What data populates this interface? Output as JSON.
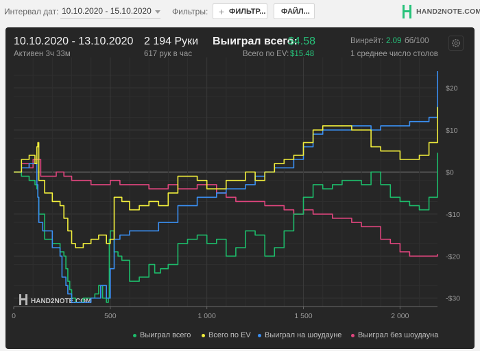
{
  "toolbar": {
    "interval_label": "Интервал дат:",
    "date_range_value": "10.10.2020 - 15.10.2020",
    "filters_label": "Фильтры:",
    "filter_button": "ФИЛЬТР...",
    "file_button": "ФАЙЛ...",
    "logo_text": "HAND2NOTE.COM"
  },
  "summary": {
    "date_range": "10.10.2020 - 13.10.2020",
    "active_time": "Активен 3ч 33м",
    "hands": "2 194 Руки",
    "hands_per_hour": "617 рук в час",
    "won_total_label": "Выиграл всего:",
    "won_total_value": "$4.58",
    "ev_total_label": "Всего по EV:",
    "ev_total_value": "$15.48",
    "winrate_label": "Винрейт:",
    "winrate_value": "2.09",
    "winrate_unit": "бб/100",
    "tables_avg": "1 среднее число столов"
  },
  "watermark_text": "HAND2NOTE.COM",
  "colors": {
    "won_total": "#1dbb6a",
    "ev_total": "#f2ef3c",
    "showdown": "#3a8ff2",
    "no_showdown": "#e0457e",
    "accent_green": "#27c27a"
  },
  "chart_data": {
    "type": "line",
    "xlabel": "",
    "ylabel": "",
    "xlim": [
      0,
      2194
    ],
    "ylim": [
      -32,
      24
    ],
    "x_ticks": [
      0,
      500,
      1000,
      1500,
      2000
    ],
    "x_tick_labels": [
      "0",
      "500",
      "1 000",
      "1 500",
      "2 000"
    ],
    "y_ticks": [
      20,
      10,
      0,
      -10,
      -20,
      -30
    ],
    "y_tick_labels": [
      "$20",
      "$10",
      "$0",
      "-$10",
      "-$20",
      "-$30"
    ],
    "grid": true,
    "legend_position": "bottom-right",
    "series": [
      {
        "name": "Выиграл всего",
        "color_key": "won_total",
        "points": [
          [
            0,
            0
          ],
          [
            40,
            -1
          ],
          [
            80,
            -2
          ],
          [
            110,
            -3
          ],
          [
            120,
            -4
          ],
          [
            125,
            -6
          ],
          [
            130,
            -10
          ],
          [
            160,
            -16
          ],
          [
            200,
            -17
          ],
          [
            240,
            -19
          ],
          [
            260,
            -20
          ],
          [
            270,
            -23
          ],
          [
            280,
            -26
          ],
          [
            290,
            -28
          ],
          [
            300,
            -30
          ],
          [
            320,
            -31
          ],
          [
            360,
            -30
          ],
          [
            400,
            -30
          ],
          [
            420,
            -29
          ],
          [
            440,
            -27
          ],
          [
            460,
            -30
          ],
          [
            480,
            -31
          ],
          [
            490,
            -30
          ],
          [
            495,
            -16
          ],
          [
            500,
            -14
          ],
          [
            520,
            -19
          ],
          [
            540,
            -20
          ],
          [
            560,
            -21
          ],
          [
            600,
            -26
          ],
          [
            650,
            -25
          ],
          [
            700,
            -22
          ],
          [
            730,
            -24
          ],
          [
            760,
            -23
          ],
          [
            800,
            -22
          ],
          [
            850,
            -17
          ],
          [
            900,
            -16
          ],
          [
            950,
            -15
          ],
          [
            1000,
            -17
          ],
          [
            1050,
            -16
          ],
          [
            1100,
            -20
          ],
          [
            1150,
            -18
          ],
          [
            1200,
            -14
          ],
          [
            1250,
            -15
          ],
          [
            1300,
            -20
          ],
          [
            1350,
            -18
          ],
          [
            1400,
            -14
          ],
          [
            1450,
            -10
          ],
          [
            1500,
            -6
          ],
          [
            1550,
            -3
          ],
          [
            1600,
            -4
          ],
          [
            1650,
            -3
          ],
          [
            1700,
            -2
          ],
          [
            1750,
            -2
          ],
          [
            1800,
            -3
          ],
          [
            1850,
            0
          ],
          [
            1900,
            -3
          ],
          [
            1950,
            -6
          ],
          [
            2000,
            -7
          ],
          [
            2050,
            -8
          ],
          [
            2100,
            -9
          ],
          [
            2150,
            -6
          ],
          [
            2194,
            4.58
          ]
        ]
      },
      {
        "name": "Всего по EV",
        "color_key": "ev_total",
        "points": [
          [
            0,
            0
          ],
          [
            40,
            3
          ],
          [
            80,
            4
          ],
          [
            110,
            2
          ],
          [
            120,
            6
          ],
          [
            125,
            7
          ],
          [
            130,
            -2
          ],
          [
            160,
            -5
          ],
          [
            200,
            -7
          ],
          [
            240,
            -8
          ],
          [
            260,
            -11
          ],
          [
            280,
            -14
          ],
          [
            300,
            -17
          ],
          [
            320,
            -18
          ],
          [
            360,
            -17
          ],
          [
            400,
            -16
          ],
          [
            440,
            -15
          ],
          [
            480,
            -17
          ],
          [
            500,
            -16
          ],
          [
            520,
            -6
          ],
          [
            560,
            -7
          ],
          [
            600,
            -9
          ],
          [
            650,
            -8
          ],
          [
            700,
            -7
          ],
          [
            750,
            -8
          ],
          [
            800,
            -5
          ],
          [
            850,
            -1
          ],
          [
            900,
            -1
          ],
          [
            950,
            -2
          ],
          [
            1000,
            -4
          ],
          [
            1050,
            -4
          ],
          [
            1100,
            -2
          ],
          [
            1150,
            -2
          ],
          [
            1200,
            0
          ],
          [
            1250,
            -2
          ],
          [
            1300,
            0
          ],
          [
            1350,
            2
          ],
          [
            1400,
            3
          ],
          [
            1450,
            4
          ],
          [
            1500,
            7
          ],
          [
            1550,
            10
          ],
          [
            1600,
            11
          ],
          [
            1650,
            11
          ],
          [
            1700,
            11
          ],
          [
            1750,
            10
          ],
          [
            1800,
            10
          ],
          [
            1850,
            6
          ],
          [
            1900,
            5
          ],
          [
            1950,
            5
          ],
          [
            2000,
            3
          ],
          [
            2050,
            3
          ],
          [
            2100,
            4
          ],
          [
            2150,
            7
          ],
          [
            2194,
            15.48
          ]
        ]
      },
      {
        "name": "Выиграл на шоудауне",
        "color_key": "showdown",
        "points": [
          [
            0,
            0
          ],
          [
            40,
            1
          ],
          [
            80,
            2
          ],
          [
            100,
            2
          ],
          [
            120,
            -3
          ],
          [
            125,
            -6
          ],
          [
            130,
            -12
          ],
          [
            150,
            -14
          ],
          [
            200,
            -18
          ],
          [
            240,
            -20
          ],
          [
            250,
            -25
          ],
          [
            270,
            -27
          ],
          [
            280,
            -29
          ],
          [
            300,
            -31
          ],
          [
            350,
            -31
          ],
          [
            400,
            -30
          ],
          [
            450,
            -27
          ],
          [
            480,
            -30
          ],
          [
            500,
            -23
          ],
          [
            520,
            -16
          ],
          [
            550,
            -15
          ],
          [
            600,
            -14
          ],
          [
            650,
            -14
          ],
          [
            700,
            -14
          ],
          [
            750,
            -12
          ],
          [
            800,
            -12
          ],
          [
            850,
            -8
          ],
          [
            900,
            -8
          ],
          [
            950,
            -6
          ],
          [
            1000,
            -6
          ],
          [
            1050,
            -5
          ],
          [
            1100,
            -4
          ],
          [
            1150,
            -4
          ],
          [
            1200,
            -3
          ],
          [
            1250,
            -1
          ],
          [
            1300,
            0
          ],
          [
            1350,
            1
          ],
          [
            1400,
            1
          ],
          [
            1450,
            3
          ],
          [
            1500,
            6
          ],
          [
            1550,
            9
          ],
          [
            1600,
            10
          ],
          [
            1650,
            10
          ],
          [
            1700,
            10
          ],
          [
            1750,
            11
          ],
          [
            1800,
            11
          ],
          [
            1850,
            10
          ],
          [
            1900,
            11
          ],
          [
            1950,
            11
          ],
          [
            2000,
            11
          ],
          [
            2050,
            12
          ],
          [
            2100,
            12
          ],
          [
            2150,
            13
          ],
          [
            2194,
            24
          ]
        ]
      },
      {
        "name": "Выиграл без шоудауна",
        "color_key": "no_showdown",
        "points": [
          [
            0,
            0
          ],
          [
            40,
            2
          ],
          [
            80,
            1
          ],
          [
            100,
            3
          ],
          [
            140,
            -1
          ],
          [
            180,
            -1
          ],
          [
            220,
            0
          ],
          [
            260,
            -1
          ],
          [
            300,
            -2
          ],
          [
            350,
            -2
          ],
          [
            400,
            -3
          ],
          [
            450,
            -3
          ],
          [
            500,
            -2
          ],
          [
            550,
            -3
          ],
          [
            600,
            -3
          ],
          [
            650,
            -3
          ],
          [
            700,
            -4
          ],
          [
            750,
            -4
          ],
          [
            800,
            -3
          ],
          [
            850,
            -4
          ],
          [
            900,
            -4
          ],
          [
            950,
            -3
          ],
          [
            1000,
            -3
          ],
          [
            1050,
            -5
          ],
          [
            1100,
            -6
          ],
          [
            1150,
            -7
          ],
          [
            1200,
            -7
          ],
          [
            1250,
            -7
          ],
          [
            1300,
            -8
          ],
          [
            1350,
            -8
          ],
          [
            1400,
            -9
          ],
          [
            1450,
            -10
          ],
          [
            1500,
            -9
          ],
          [
            1550,
            -10
          ],
          [
            1600,
            -10
          ],
          [
            1650,
            -11
          ],
          [
            1700,
            -11
          ],
          [
            1750,
            -12
          ],
          [
            1800,
            -13
          ],
          [
            1850,
            -13
          ],
          [
            1900,
            -16
          ],
          [
            1950,
            -17
          ],
          [
            2000,
            -19
          ],
          [
            2050,
            -20
          ],
          [
            2100,
            -20
          ],
          [
            2150,
            -20
          ],
          [
            2194,
            -19.5
          ]
        ]
      }
    ]
  }
}
